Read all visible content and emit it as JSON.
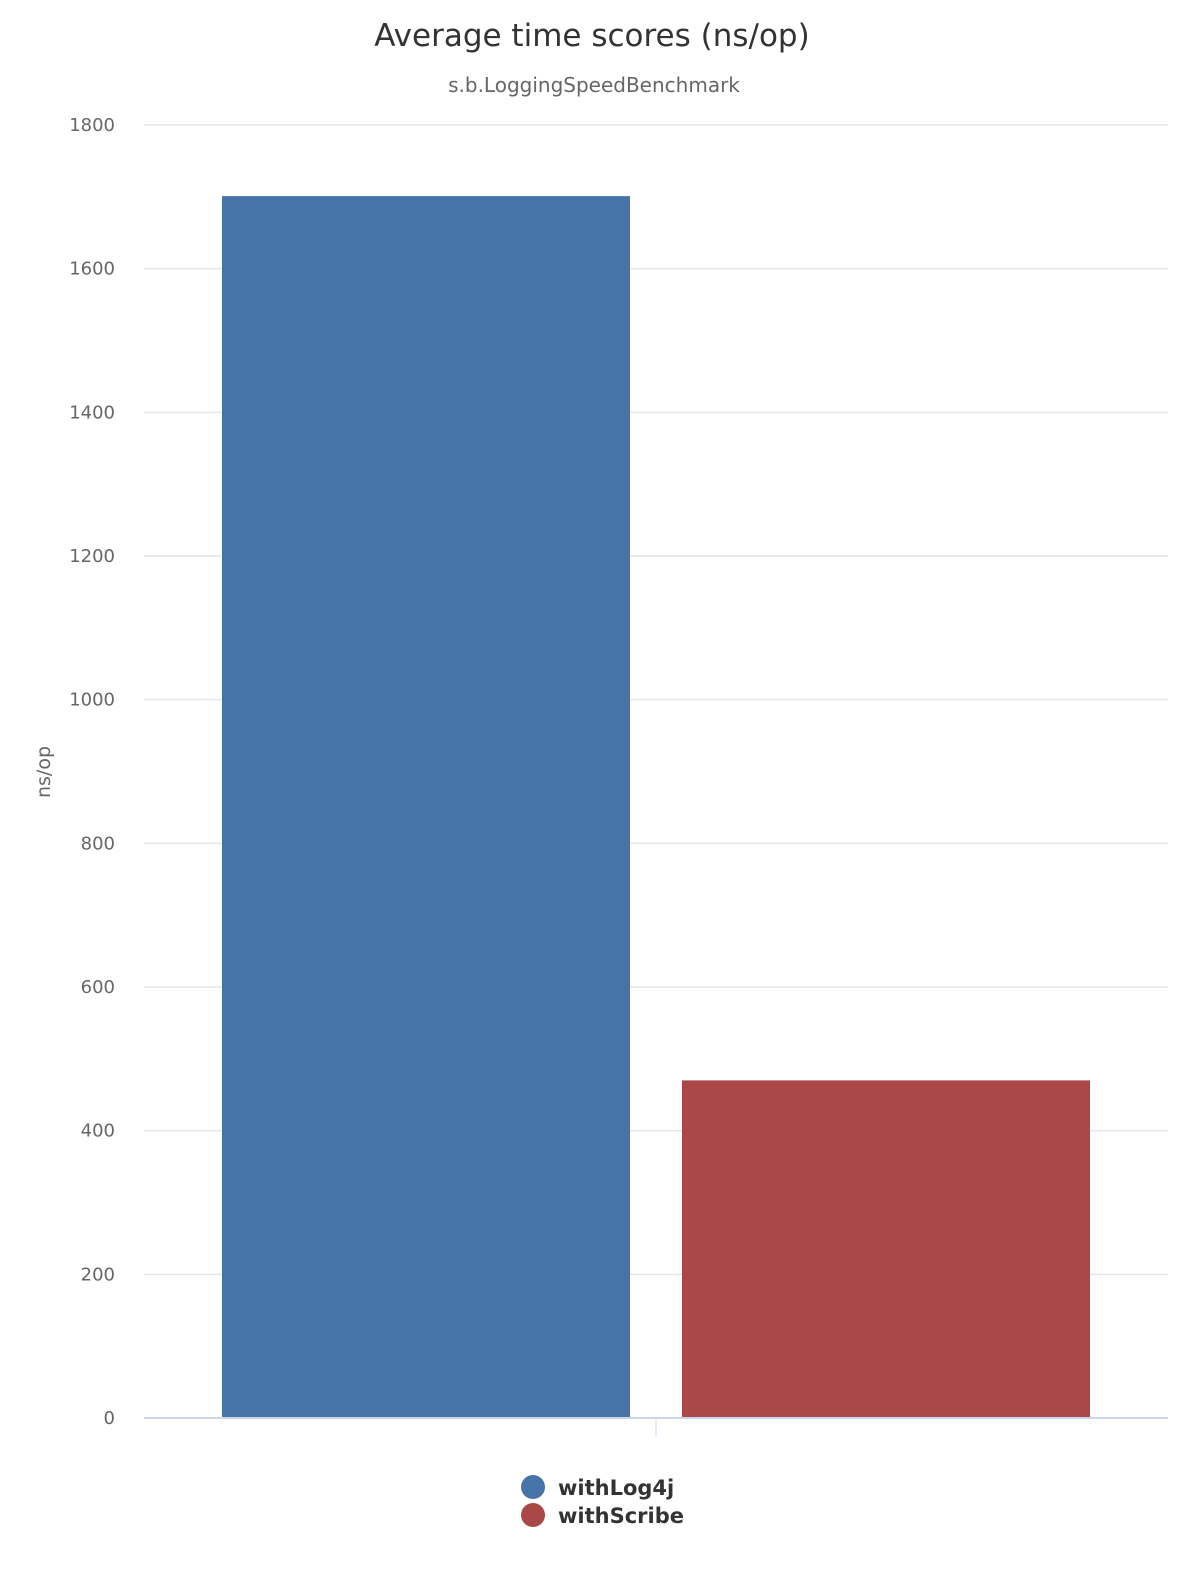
{
  "chart_data": {
    "type": "bar",
    "title": "Average time scores (ns/op)",
    "subtitle": "s.b.LoggingSpeedBenchmark",
    "ylabel": "ns/op",
    "xlabel": "",
    "ylim": [
      0,
      1800
    ],
    "yticks": [
      0,
      200,
      400,
      600,
      800,
      1000,
      1200,
      1400,
      1600,
      1800
    ],
    "grid": true,
    "legend_position": "bottom-center",
    "series": [
      {
        "name": "withLog4j",
        "value": 1701,
        "color": "#4673a8"
      },
      {
        "name": "withScribe",
        "value": 470,
        "color": "#aa4747"
      }
    ]
  }
}
